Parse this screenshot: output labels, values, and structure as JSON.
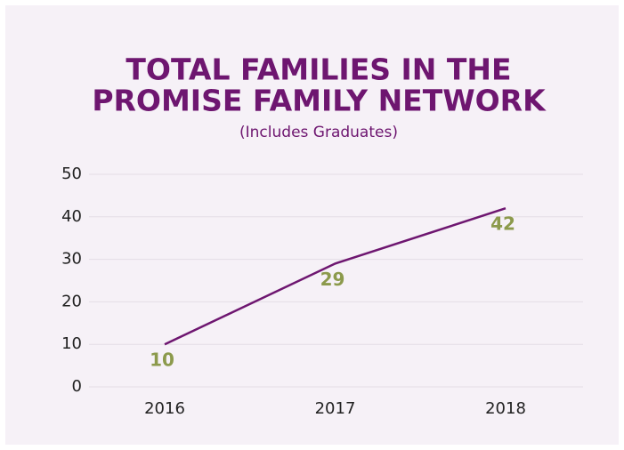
{
  "chart_data": {
    "type": "line",
    "title": [
      "TOTAL FAMILIES IN THE",
      "PROMISE FAMILY NETWORK"
    ],
    "subtitle": "(Includes Graduates)",
    "categories": [
      "2016",
      "2017",
      "2018"
    ],
    "series": [
      {
        "color": "#6e1670",
        "label_color": "#8c9a4c",
        "values": [
          10,
          29,
          42
        ]
      }
    ],
    "ylim": [
      0,
      50
    ],
    "yticks": [
      0,
      10,
      20,
      30,
      40,
      50
    ],
    "grid": true
  }
}
